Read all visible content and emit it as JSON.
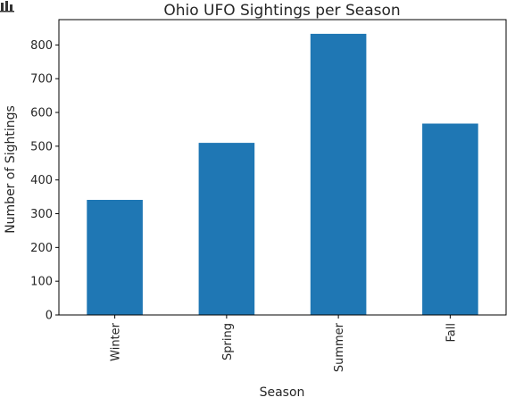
{
  "app": {
    "corner_icon": "bar-chart-icon"
  },
  "chart_data": {
    "type": "bar",
    "title": "Ohio UFO Sightings per Season",
    "xlabel": "Season",
    "ylabel": "Number of Sightings",
    "categories": [
      "Winter",
      "Spring",
      "Summer",
      "Fall"
    ],
    "values": [
      341,
      510,
      833,
      567
    ],
    "ylim": [
      0,
      875
    ],
    "yticks": [
      0,
      100,
      200,
      300,
      400,
      500,
      600,
      700,
      800
    ],
    "grid": false,
    "bar_color": "#1f77b4",
    "legend": "none"
  }
}
